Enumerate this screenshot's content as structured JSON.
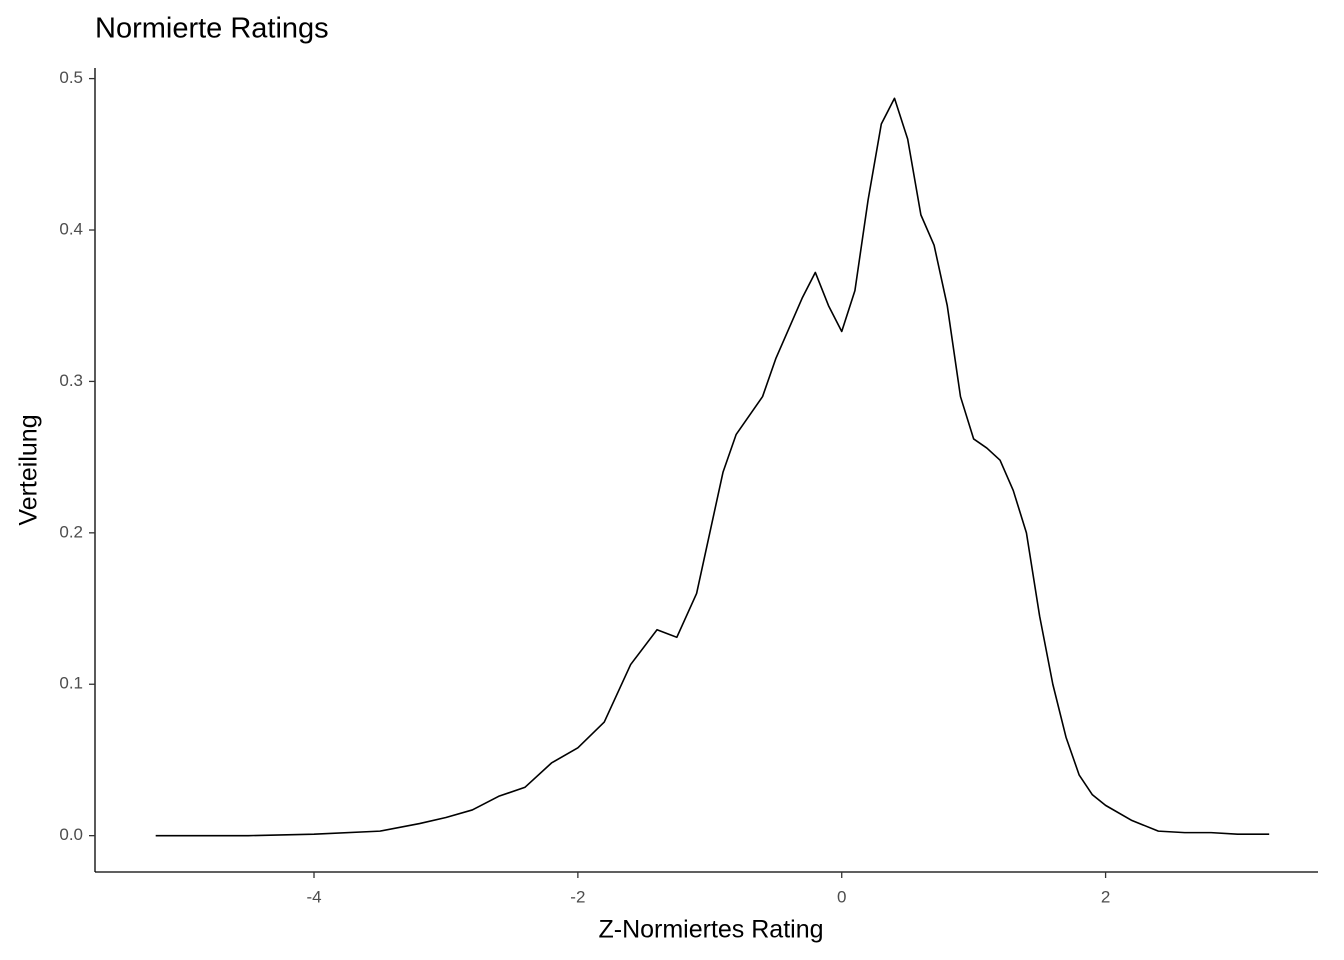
{
  "chart_data": {
    "type": "line",
    "title": "Normierte Ratings",
    "xlabel": "Z-Normiertes Rating",
    "ylabel": "Verteilung",
    "x": [
      -5.2,
      -4.5,
      -4,
      -3.5,
      -3.2,
      -3.0,
      -2.8,
      -2.6,
      -2.4,
      -2.2,
      -2.0,
      -1.8,
      -1.6,
      -1.4,
      -1.25,
      -1.1,
      -1.0,
      -0.9,
      -0.8,
      -0.6,
      -0.5,
      -0.4,
      -0.3,
      -0.2,
      -0.1,
      0.0,
      0.1,
      0.2,
      0.3,
      0.4,
      0.5,
      0.6,
      0.7,
      0.8,
      0.9,
      1.0,
      1.1,
      1.2,
      1.3,
      1.4,
      1.5,
      1.6,
      1.7,
      1.8,
      1.9,
      2.0,
      2.2,
      2.4,
      2.6,
      2.8,
      3.0,
      3.24
    ],
    "series": [
      {
        "name": "density",
        "color": "#000000",
        "values": [
          0.0,
          0.0,
          0.001,
          0.003,
          0.008,
          0.012,
          0.017,
          0.026,
          0.032,
          0.048,
          0.058,
          0.075,
          0.113,
          0.136,
          0.131,
          0.16,
          0.2,
          0.24,
          0.265,
          0.29,
          0.315,
          0.335,
          0.355,
          0.372,
          0.35,
          0.333,
          0.36,
          0.42,
          0.47,
          0.487,
          0.46,
          0.41,
          0.39,
          0.35,
          0.29,
          0.262,
          0.256,
          0.248,
          0.228,
          0.2,
          0.145,
          0.1,
          0.065,
          0.04,
          0.027,
          0.02,
          0.01,
          0.003,
          0.002,
          0.002,
          0.001,
          0.001
        ]
      }
    ],
    "xlim": [
      -5.66,
      3.61
    ],
    "ylim": [
      -0.024,
      0.507
    ],
    "xticks": [
      -4,
      -2,
      0,
      2
    ],
    "yticks": [
      {
        "value": 0,
        "label": "0.0"
      },
      0.1,
      0.2,
      0.3,
      0.4,
      0.5
    ],
    "grid": false
  }
}
